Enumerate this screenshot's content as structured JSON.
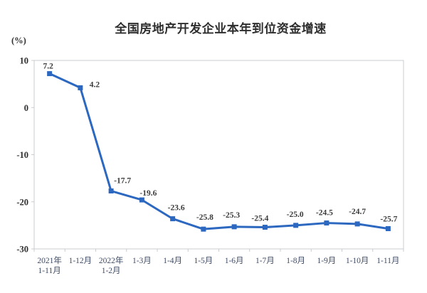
{
  "page": {
    "background_color": "#ffffff"
  },
  "chart_data": {
    "type": "line",
    "title": "全国房地产开发企业本年到位资金增速",
    "unit_label": "(%)",
    "categories": [
      [
        "2021年",
        "1-11月"
      ],
      [
        "1-12月"
      ],
      [
        "2022年",
        "1-2月"
      ],
      [
        "1-3月"
      ],
      [
        "1-4月"
      ],
      [
        "1-5月"
      ],
      [
        "1-6月"
      ],
      [
        "1-7月"
      ],
      [
        "1-8月"
      ],
      [
        "1-9月"
      ],
      [
        "1-10月"
      ],
      [
        "1-11月"
      ]
    ],
    "values": [
      7.2,
      4.2,
      -17.7,
      -19.6,
      -23.6,
      -25.8,
      -25.3,
      -25.4,
      -25.0,
      -24.5,
      -24.7,
      -25.7
    ],
    "value_labels": [
      "7.2",
      "4.2",
      "-17.7",
      "-19.6",
      "-23.6",
      "-25.8",
      "-25.3",
      "-25.4",
      "-25.0",
      "-24.5",
      "-24.7",
      "-25.7"
    ],
    "ylim": [
      -30,
      10
    ],
    "yticks": [
      10,
      0,
      -10,
      -20,
      -30
    ],
    "grid": false,
    "legend": "none",
    "line_color": "#2c68c0",
    "marker_shape": "square",
    "axis_color": "#c9ccd1",
    "data_label_color": "#3b3b3b",
    "ytick_label_color": "#2f2f2f",
    "xtick_label_color": "#414d66",
    "title_color": "#2e2e2e"
  }
}
